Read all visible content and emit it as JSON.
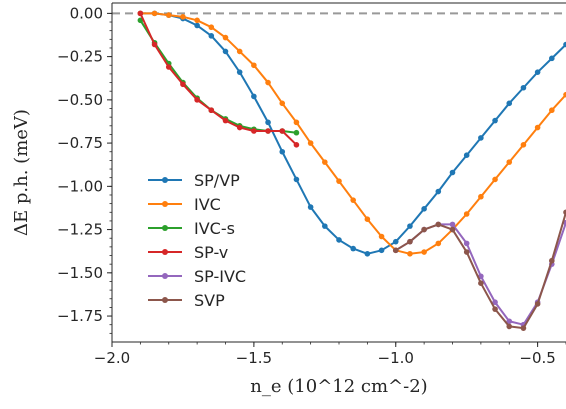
{
  "chart_data": {
    "type": "line",
    "xlabel": "n_e (10^12 cm^-2)",
    "ylabel": "ΔE p.h. (meV)",
    "xlim": [
      -2.0,
      -0.4
    ],
    "ylim": [
      -1.9,
      0.06
    ],
    "xticks": [
      -2.0,
      -1.5,
      -1.0,
      -0.5
    ],
    "xtick_labels": [
      "−2.0",
      "−1.5",
      "−1.0",
      "−0.5"
    ],
    "yticks": [
      0.0,
      -0.25,
      -0.5,
      -0.75,
      -1.0,
      -1.25,
      -1.5,
      -1.75
    ],
    "ytick_labels": [
      "0.00",
      "−0.25",
      "−0.50",
      "−0.75",
      "−1.00",
      "−1.25",
      "−1.50",
      "−1.75"
    ],
    "reference_line": {
      "y": 0.0,
      "style": "dashed",
      "color": "#999999"
    },
    "legend_position": "lower-left",
    "series": [
      {
        "name": "SP/VP",
        "color": "#1f77b4",
        "x": [
          -1.9,
          -1.85,
          -1.8,
          -1.75,
          -1.7,
          -1.65,
          -1.6,
          -1.55,
          -1.5,
          -1.45,
          -1.4,
          -1.35,
          -1.3,
          -1.25,
          -1.2,
          -1.15,
          -1.1,
          -1.05,
          -1.0,
          -0.95,
          -0.9,
          -0.85,
          -0.8,
          -0.75,
          -0.7,
          -0.65,
          -0.6,
          -0.55,
          -0.5,
          -0.45,
          -0.4
        ],
        "y": [
          0.0,
          0.0,
          -0.01,
          -0.03,
          -0.07,
          -0.13,
          -0.22,
          -0.34,
          -0.48,
          -0.63,
          -0.8,
          -0.96,
          -1.12,
          -1.23,
          -1.31,
          -1.36,
          -1.39,
          -1.37,
          -1.32,
          -1.23,
          -1.13,
          -1.03,
          -0.92,
          -0.82,
          -0.72,
          -0.62,
          -0.52,
          -0.43,
          -0.34,
          -0.26,
          -0.18
        ]
      },
      {
        "name": "IVC",
        "color": "#ff7f0e",
        "x": [
          -1.9,
          -1.85,
          -1.8,
          -1.75,
          -1.7,
          -1.65,
          -1.6,
          -1.55,
          -1.5,
          -1.45,
          -1.4,
          -1.35,
          -1.3,
          -1.25,
          -1.2,
          -1.15,
          -1.1,
          -1.05,
          -1.0,
          -0.95,
          -0.9,
          -0.85,
          -0.8,
          -0.75,
          -0.7,
          -0.65,
          -0.6,
          -0.55,
          -0.5,
          -0.45,
          -0.4
        ],
        "y": [
          0.0,
          0.0,
          -0.01,
          -0.02,
          -0.04,
          -0.08,
          -0.14,
          -0.22,
          -0.3,
          -0.4,
          -0.52,
          -0.63,
          -0.75,
          -0.86,
          -0.97,
          -1.08,
          -1.19,
          -1.29,
          -1.37,
          -1.39,
          -1.38,
          -1.33,
          -1.25,
          -1.16,
          -1.06,
          -0.96,
          -0.86,
          -0.76,
          -0.66,
          -0.56,
          -0.47
        ]
      },
      {
        "name": "IVC-s",
        "color": "#2ca02c",
        "x": [
          -1.9,
          -1.85,
          -1.8,
          -1.75,
          -1.7,
          -1.65,
          -1.6,
          -1.55,
          -1.5,
          -1.45,
          -1.4,
          -1.35
        ],
        "y": [
          -0.04,
          -0.17,
          -0.29,
          -0.4,
          -0.49,
          -0.56,
          -0.61,
          -0.65,
          -0.67,
          -0.68,
          -0.68,
          -0.69
        ]
      },
      {
        "name": "SP-v",
        "color": "#d62728",
        "x": [
          -1.9,
          -1.85,
          -1.8,
          -1.75,
          -1.7,
          -1.65,
          -1.6,
          -1.55,
          -1.5,
          -1.45,
          -1.4,
          -1.35
        ],
        "y": [
          0.0,
          -0.18,
          -0.31,
          -0.41,
          -0.5,
          -0.56,
          -0.62,
          -0.66,
          -0.68,
          -0.68,
          -0.68,
          -0.76
        ]
      },
      {
        "name": "SP-IVC",
        "color": "#9467bd",
        "x": [
          -1.0,
          -0.95,
          -0.9,
          -0.85,
          -0.8,
          -0.75,
          -0.7,
          -0.65,
          -0.6,
          -0.55,
          -0.5,
          -0.45,
          -0.4
        ],
        "y": [
          -1.37,
          -1.32,
          -1.25,
          -1.22,
          -1.22,
          -1.33,
          -1.52,
          -1.67,
          -1.78,
          -1.8,
          -1.67,
          -1.45,
          -1.21
        ]
      },
      {
        "name": "SVP",
        "color": "#8c564b",
        "x": [
          -1.0,
          -0.95,
          -0.9,
          -0.85,
          -0.8,
          -0.75,
          -0.7,
          -0.65,
          -0.6,
          -0.55,
          -0.5,
          -0.45,
          -0.4
        ],
        "y": [
          -1.37,
          -1.32,
          -1.25,
          -1.22,
          -1.25,
          -1.38,
          -1.56,
          -1.71,
          -1.81,
          -1.82,
          -1.68,
          -1.43,
          -1.15
        ]
      }
    ]
  }
}
